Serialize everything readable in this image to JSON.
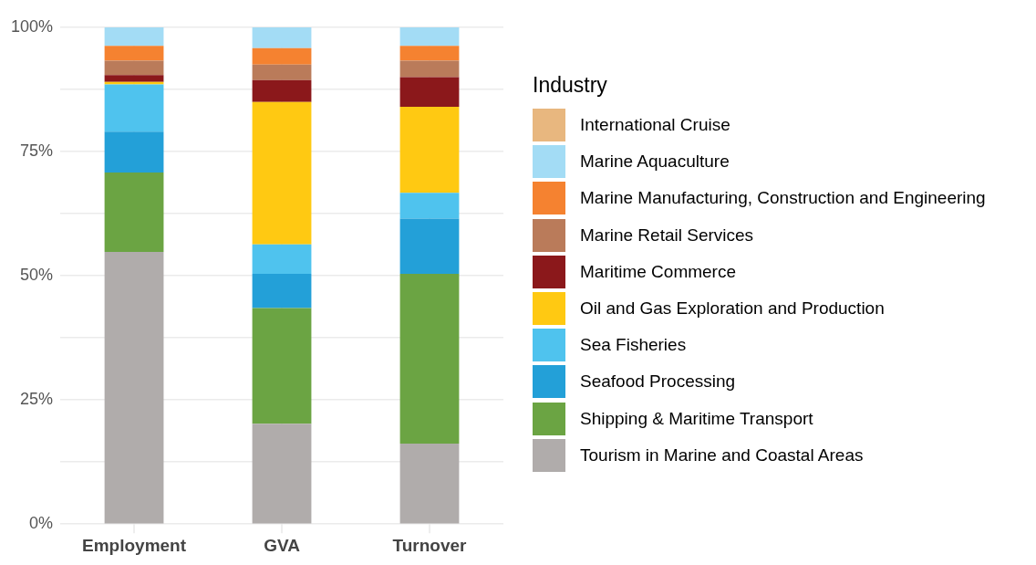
{
  "chart_data": {
    "type": "bar",
    "stacked": true,
    "legend_title": "Industry",
    "legend": "right",
    "grid": true,
    "categories": [
      "Employment",
      "GVA",
      "Turnover"
    ],
    "ylim": [
      0,
      100
    ],
    "yticks": [
      {
        "value": 0,
        "label": "0%"
      },
      {
        "value": 12.5,
        "label": null
      },
      {
        "value": 25,
        "label": "25%"
      },
      {
        "value": 37.5,
        "label": null
      },
      {
        "value": 50,
        "label": "50%"
      },
      {
        "value": 62.5,
        "label": null
      },
      {
        "value": 75,
        "label": "75%"
      },
      {
        "value": 87.5,
        "label": null
      },
      {
        "value": 100,
        "label": "100%"
      }
    ],
    "series": [
      {
        "name": "Tourism in Marine and Coastal Areas",
        "color": "#b0acab",
        "values": [
          54.8,
          20.2,
          16.2
        ]
      },
      {
        "name": "Shipping & Maritime Transport",
        "color": "#6ba443",
        "values": [
          16.0,
          23.3,
          34.2
        ]
      },
      {
        "name": "Seafood Processing",
        "color": "#23a0d8",
        "values": [
          8.2,
          6.9,
          11.1
        ]
      },
      {
        "name": "Sea Fisheries",
        "color": "#4fc3ee",
        "values": [
          9.5,
          5.9,
          5.2
        ]
      },
      {
        "name": "Oil and Gas Exploration and Production",
        "color": "#ffc912",
        "values": [
          0.5,
          28.7,
          17.3
        ]
      },
      {
        "name": "Maritime Commerce",
        "color": "#8b181b",
        "values": [
          1.4,
          4.4,
          6.0
        ]
      },
      {
        "name": "Marine Retail Services",
        "color": "#ba7b5a",
        "values": [
          2.9,
          3.1,
          3.3
        ]
      },
      {
        "name": "Marine Manufacturing, Construction and Engineering",
        "color": "#f58230",
        "values": [
          3.0,
          3.3,
          3.0
        ]
      },
      {
        "name": "Marine Aquaculture",
        "color": "#a3dcf5",
        "values": [
          3.7,
          4.2,
          3.7
        ]
      },
      {
        "name": "International Cruise",
        "color": "#e8b77f",
        "values": [
          0,
          0,
          0
        ]
      }
    ]
  }
}
